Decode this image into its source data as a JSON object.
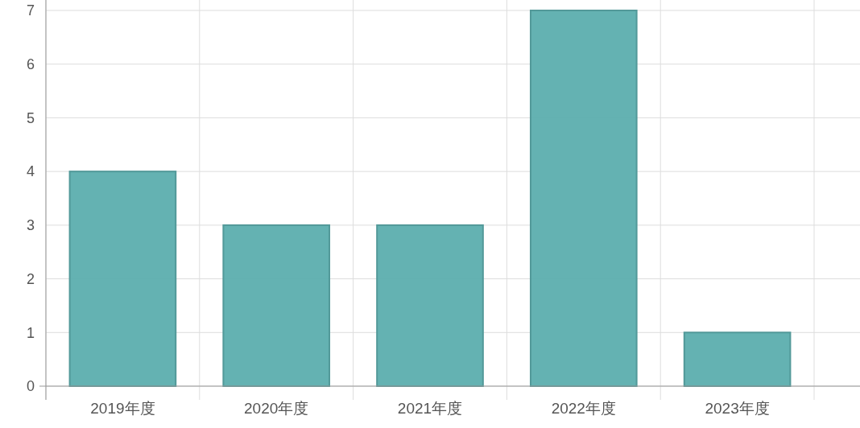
{
  "chart_data": {
    "type": "bar",
    "categories": [
      "2019年度",
      "2020年度",
      "2021年度",
      "2022年度",
      "2023年度"
    ],
    "values": [
      4,
      3,
      3,
      7,
      1
    ],
    "color": "#5fb0b0",
    "ylim": [
      0,
      7
    ],
    "yticks": [
      0,
      1,
      2,
      3,
      4,
      5,
      6,
      7
    ],
    "grid": true
  }
}
